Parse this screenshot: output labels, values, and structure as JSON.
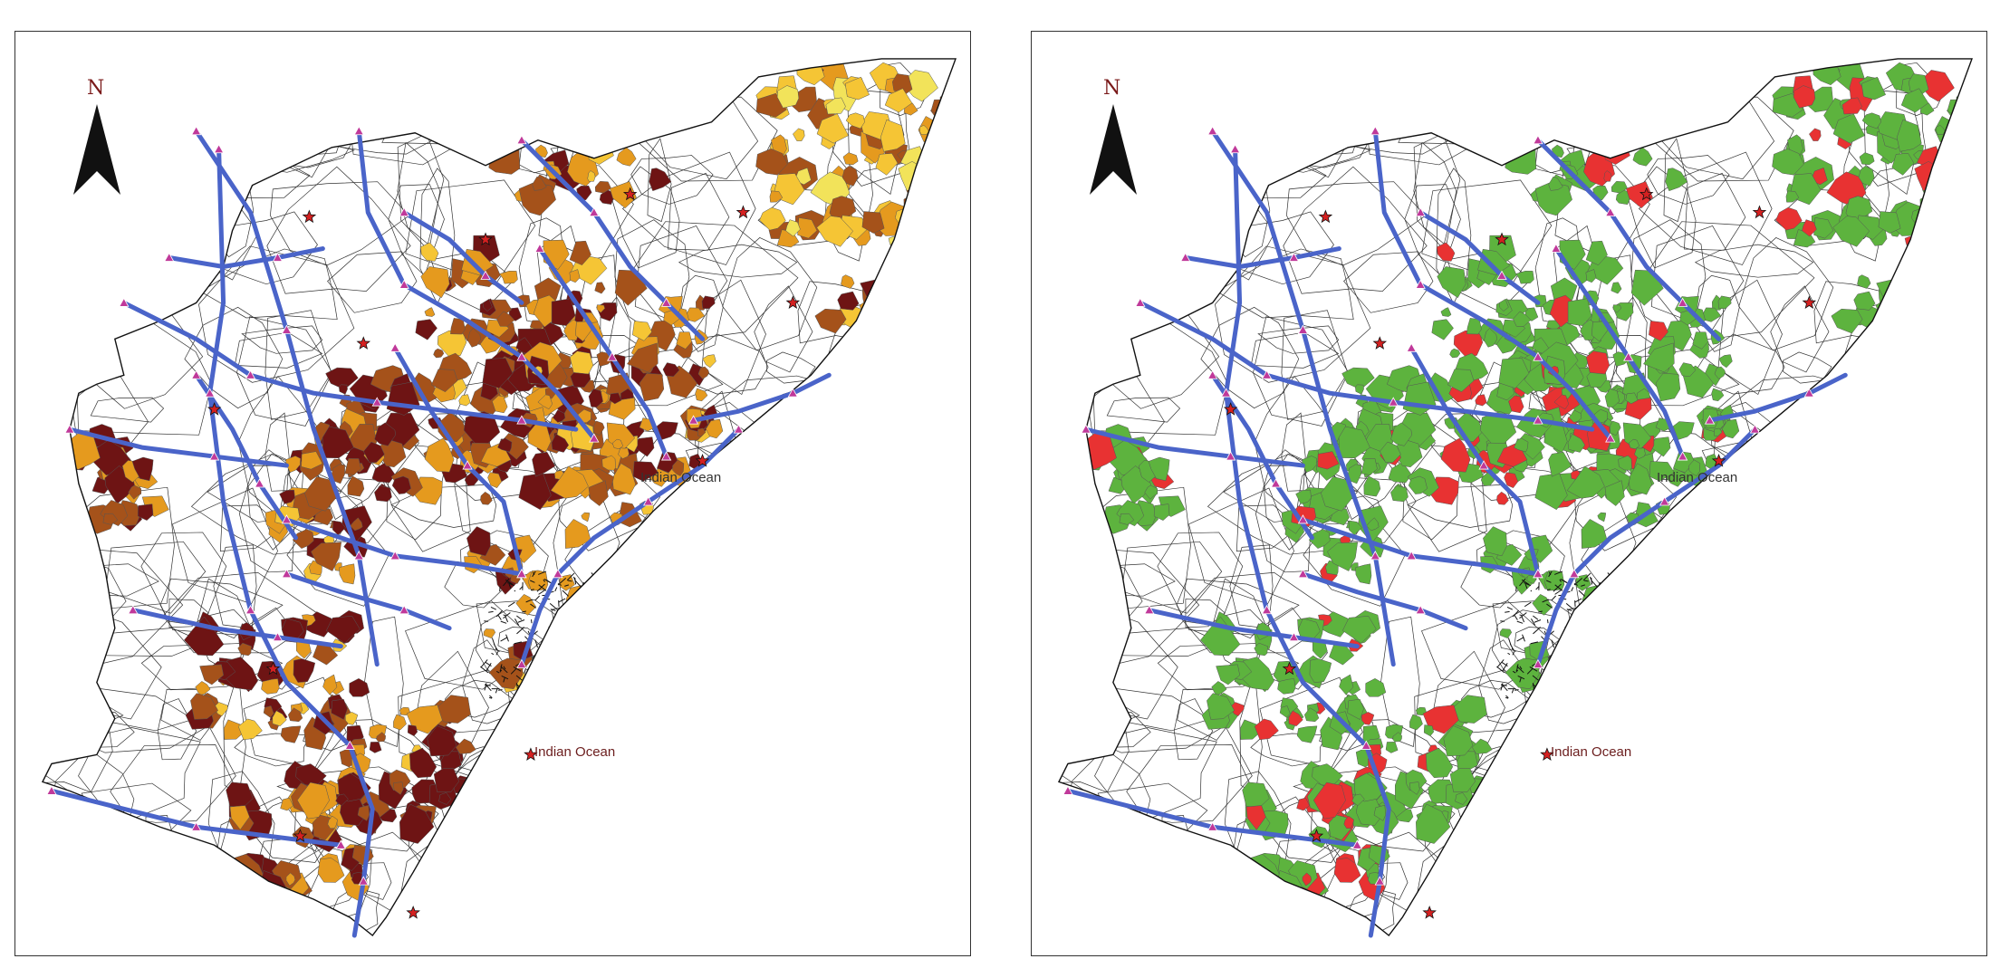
{
  "maps": [
    {
      "id": "left",
      "north_label": "N",
      "ocean_label": "Indian Ocean",
      "ocean_label_upper": "Indian Ocean",
      "fill_colors": [
        "#f2e35a",
        "#f5c535",
        "#e59a1e",
        "#a5521a",
        "#6e1414"
      ]
    },
    {
      "id": "right",
      "north_label": "N",
      "ocean_label": "Indian Ocean",
      "ocean_label_upper": "Indian Ocean",
      "fill_colors": [
        "#5db33e",
        "#e83232"
      ]
    }
  ],
  "styles": {
    "road_color": "#4a64c9",
    "boundary_color": "#222222",
    "node_color": "#c0399a",
    "star_color": "#d42020"
  }
}
